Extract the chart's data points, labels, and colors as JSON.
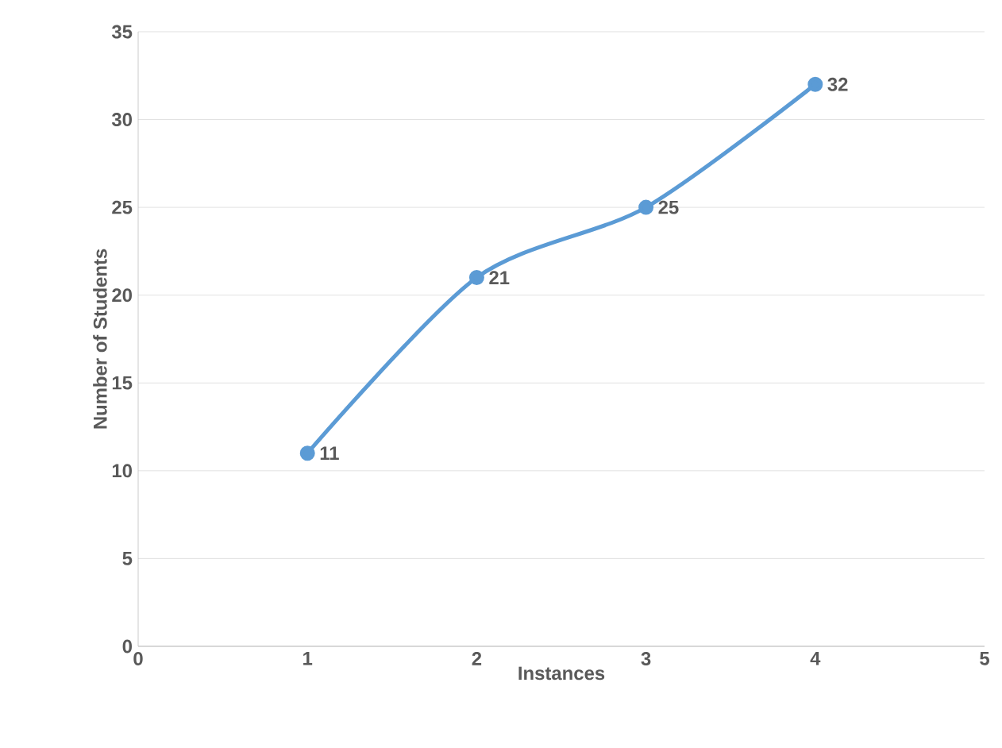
{
  "chart_data": {
    "type": "line",
    "xlabel": "Instances",
    "ylabel": "Number of Students",
    "x": [
      1,
      2,
      3,
      4
    ],
    "values": [
      11,
      21,
      25,
      32
    ],
    "color": "#5b9bd5",
    "xlim": [
      0,
      5
    ],
    "ylim": [
      0,
      35
    ],
    "xticks": [
      0,
      1,
      2,
      3,
      4,
      5
    ],
    "yticks": [
      0,
      5,
      10,
      15,
      20,
      25,
      30,
      35
    ],
    "grid": "y",
    "marker": "circle",
    "data_labels": true
  }
}
